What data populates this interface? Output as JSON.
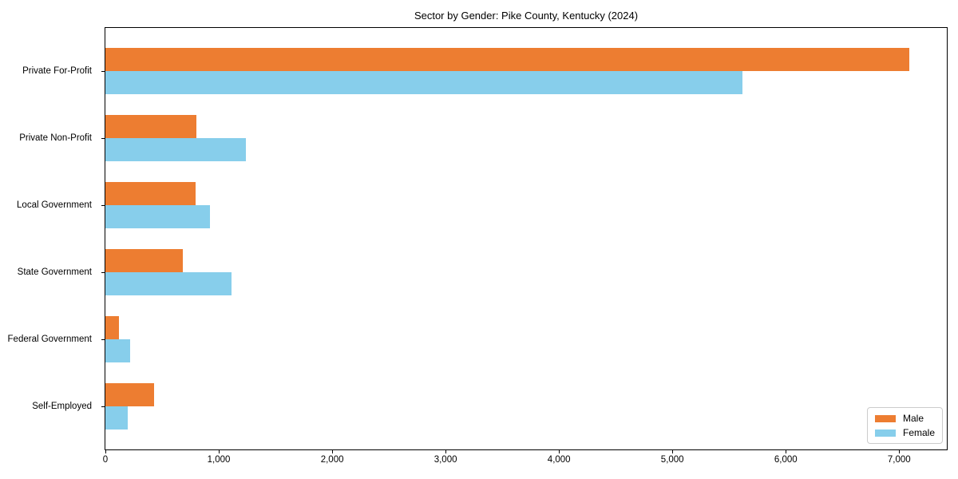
{
  "figure": {
    "background": "#ffffff",
    "axis_color": "#000000",
    "text_color": "#000000",
    "legend_border_color": "#cccccc"
  },
  "chart_data": {
    "type": "bar",
    "orientation": "horizontal",
    "title": "Sector by Gender: Pike County, Kentucky (2024)",
    "xlabel": "",
    "ylabel": "",
    "categories": [
      "Private For-Profit",
      "Private Non-Profit",
      "Local Government",
      "State Government",
      "Federal Government",
      "Self-Employed"
    ],
    "series": [
      {
        "name": "Male",
        "color": "#ED7D31",
        "values": [
          7090,
          800,
          795,
          680,
          120,
          430
        ]
      },
      {
        "name": "Female",
        "color": "#87CEEB",
        "values": [
          5620,
          1240,
          920,
          1115,
          215,
          195
        ]
      }
    ],
    "xlim": [
      0,
      7420
    ],
    "xticks": [
      0,
      1000,
      2000,
      3000,
      4000,
      5000,
      6000,
      7000
    ],
    "xtick_labels": [
      "0",
      "1,000",
      "2,000",
      "3,000",
      "4,000",
      "5,000",
      "6,000",
      "7,000"
    ],
    "grid": false,
    "legend": {
      "position": "lower right",
      "entries": [
        "Male",
        "Female"
      ]
    }
  }
}
